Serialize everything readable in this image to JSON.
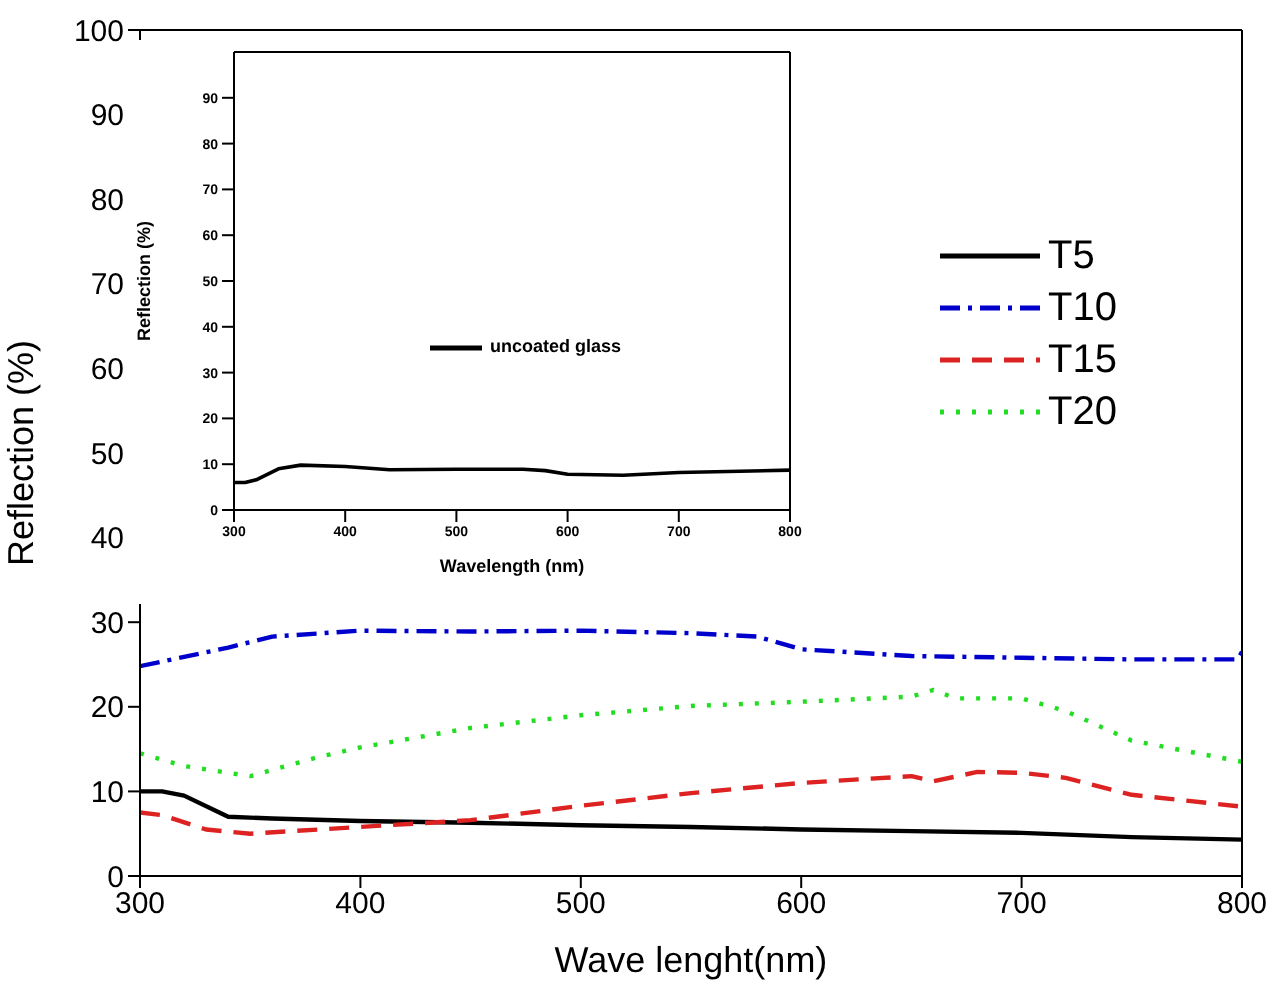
{
  "chart_data": [
    {
      "type": "line",
      "xlabel": "Wave lenght(nm)",
      "ylabel": "Reflection (%)",
      "xlim": [
        300,
        800
      ],
      "xticks": [
        300,
        400,
        500,
        600,
        700,
        800
      ],
      "ylim": [
        0,
        100
      ],
      "yticks": [
        0,
        10,
        20,
        30,
        40,
        50,
        60,
        70,
        80,
        90,
        100
      ],
      "legend": "right",
      "marker": "none",
      "series": [
        {
          "name": "T5",
          "color": "#000000",
          "line_style": "solid",
          "x": [
            300,
            310,
            320,
            340,
            360,
            400,
            450,
            500,
            550,
            600,
            650,
            700,
            750,
            800
          ],
          "values": [
            10,
            10,
            9.5,
            7,
            6.8,
            6.5,
            6.3,
            6,
            5.8,
            5.5,
            5.3,
            5.1,
            4.6,
            4.3
          ]
        },
        {
          "name": "T10",
          "color": "#0000cc",
          "line_style": "dashdot",
          "x": [
            300,
            340,
            360,
            400,
            450,
            500,
            550,
            580,
            600,
            650,
            700,
            750,
            798,
            800
          ],
          "values": [
            24.8,
            27,
            28.3,
            29,
            28.9,
            29,
            28.7,
            28.3,
            26.8,
            26,
            25.8,
            25.6,
            25.6,
            26.5
          ]
        },
        {
          "name": "T15",
          "color": "#dd2222",
          "line_style": "dashed",
          "x": [
            300,
            310,
            330,
            350,
            400,
            450,
            500,
            550,
            600,
            650,
            660,
            680,
            700,
            720,
            750,
            800
          ],
          "values": [
            7.5,
            7.2,
            5.5,
            5,
            5.8,
            6.6,
            8.3,
            9.8,
            11,
            11.8,
            11.2,
            12.3,
            12.2,
            11.6,
            9.6,
            8.2
          ]
        },
        {
          "name": "T20",
          "color": "#22dd22",
          "line_style": "dotted",
          "x": [
            300,
            320,
            350,
            380,
            400,
            450,
            500,
            550,
            600,
            650,
            660,
            670,
            700,
            720,
            750,
            800
          ],
          "values": [
            14.5,
            13,
            11.8,
            14,
            15.2,
            17.5,
            19,
            20.1,
            20.6,
            21.2,
            22,
            21,
            21,
            19.5,
            16,
            13.5
          ]
        }
      ]
    },
    {
      "type": "line",
      "xlabel": "Wavelength (nm)",
      "ylabel": "Reflection (%)",
      "xlim": [
        300,
        800
      ],
      "xticks": [
        300,
        400,
        500,
        600,
        700,
        800
      ],
      "ylim": [
        0,
        100
      ],
      "yticks": [
        0,
        10,
        20,
        30,
        40,
        50,
        60,
        70,
        80,
        90
      ],
      "legend": "center",
      "marker": "none",
      "series": [
        {
          "name": "uncoated glass",
          "color": "#000000",
          "line_style": "solid",
          "x": [
            300,
            310,
            320,
            340,
            360,
            400,
            440,
            500,
            560,
            580,
            600,
            650,
            700,
            800
          ],
          "values": [
            6,
            6,
            6.6,
            9,
            9.8,
            9.5,
            8.8,
            8.9,
            8.9,
            8.6,
            7.8,
            7.6,
            8.2,
            8.7
          ]
        }
      ]
    }
  ]
}
